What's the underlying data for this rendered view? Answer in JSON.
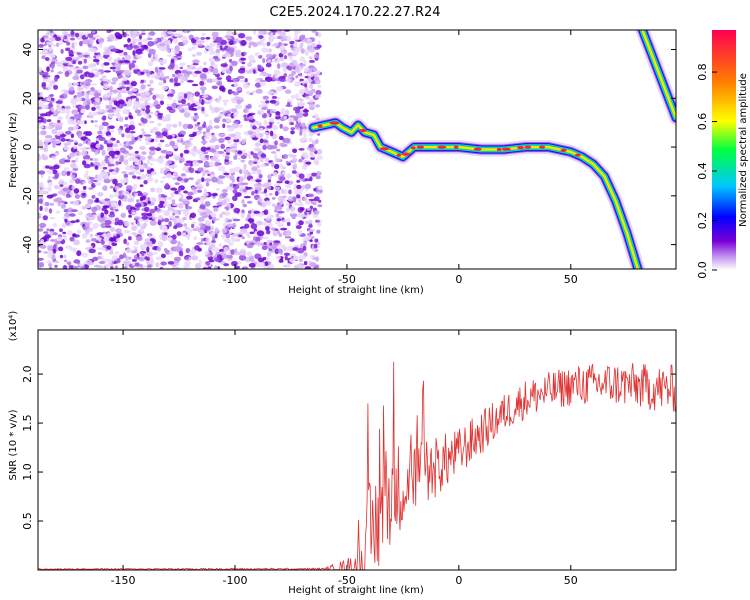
{
  "title": "C2E5.2024.170.22.27.R24",
  "chart_data": [
    {
      "type": "heatmap",
      "xlabel": "Height of straight line (km)",
      "ylabel": "Frequency (Hz)",
      "xlim": [
        -188,
        97
      ],
      "ylim": [
        -50,
        48
      ],
      "x_ticks": [
        -150,
        -100,
        -50,
        0,
        50
      ],
      "y_ticks": [
        -40,
        -20,
        0,
        20,
        40
      ],
      "colorbar": {
        "label": "Normalized spectral amplitude",
        "range": [
          0.0,
          0.97
        ],
        "ticks": [
          "0.0",
          "0.2",
          "0.4",
          "0.6",
          "0.8"
        ],
        "colors": [
          "#ffffff",
          "#7a00d8",
          "#0000ff",
          "#00c8ff",
          "#00ff40",
          "#ffff00",
          "#ff8000",
          "#ff0050"
        ]
      },
      "noise_region": {
        "x": [
          -188,
          -62
        ],
        "y": [
          -50,
          48
        ]
      },
      "ridge": {
        "x": [
          -65,
          -60,
          -55,
          -52,
          -48,
          -45,
          -42,
          -38,
          -35,
          -30,
          -25,
          -20,
          -10,
          0,
          10,
          20,
          30,
          40,
          45,
          50,
          55,
          60,
          65,
          70,
          75,
          80
        ],
        "y": [
          8,
          9,
          10,
          8,
          6,
          9,
          6,
          5,
          0,
          -2,
          -4,
          0,
          0,
          0,
          -1,
          -1,
          0,
          0,
          -1,
          -2,
          -4,
          -7,
          -12,
          -22,
          -35,
          -50
        ]
      },
      "ridge_upper": {
        "x": [
          82,
          97
        ],
        "y": [
          48,
          12
        ]
      }
    },
    {
      "type": "line",
      "xlabel": "Height of straight line (km)",
      "ylabel": "SNR (10 * v/v)",
      "y_multiplier": "(x10⁴)",
      "xlim": [
        -188,
        97
      ],
      "ylim": [
        0,
        2.45
      ],
      "x_ticks": [
        -150,
        -100,
        -50,
        0,
        50
      ],
      "y_ticks": [
        "0.5",
        "1.0",
        "1.5",
        "2.0"
      ],
      "series": [
        {
          "color": "#e03030",
          "trend_x": [
            -188,
            -60,
            -50,
            -47,
            -44,
            -40,
            -35,
            -30,
            -20,
            -10,
            0,
            10,
            20,
            30,
            40,
            50,
            60,
            70,
            80,
            90,
            97
          ],
          "trend_y": [
            0.01,
            0.01,
            0.02,
            0.05,
            0.1,
            0.3,
            0.55,
            0.8,
            0.95,
            1.05,
            1.2,
            1.4,
            1.6,
            1.75,
            1.82,
            1.88,
            1.9,
            1.9,
            1.88,
            1.85,
            1.85
          ],
          "noise_amp_x": [
            -188,
            -60,
            -45,
            -40,
            -30,
            -15,
            0,
            20,
            40,
            97
          ],
          "noise_amp_y": [
            0.005,
            0.01,
            0.15,
            0.6,
            0.5,
            0.35,
            0.25,
            0.2,
            0.2,
            0.25
          ]
        }
      ]
    }
  ]
}
